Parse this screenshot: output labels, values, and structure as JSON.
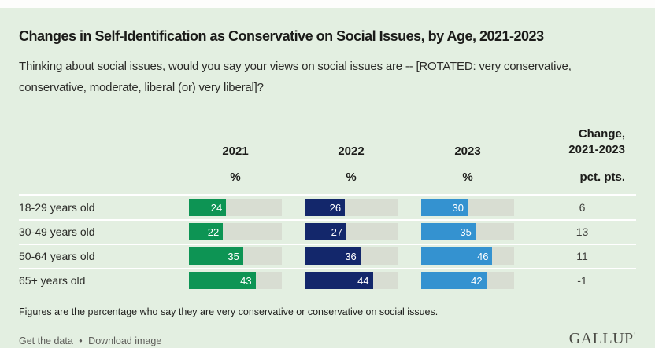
{
  "title": "Changes in Self-Identification as Conservative on Social Issues, by Age, 2021-2023",
  "subtitle": "Thinking about social issues, would you say your views on social issues are -- [ROTATED: very conservative, conservative, moderate, liberal (or) very liberal]?",
  "chart_data": {
    "type": "bar",
    "categories": [
      "18-29 years old",
      "30-49 years old",
      "50-64 years old",
      "65+ years old"
    ],
    "series": [
      {
        "name": "2021",
        "unit": "%",
        "color": "#0d9454",
        "values": [
          24,
          22,
          35,
          43
        ]
      },
      {
        "name": "2022",
        "unit": "%",
        "color": "#13276b",
        "values": [
          26,
          27,
          36,
          44
        ]
      },
      {
        "name": "2023",
        "unit": "%",
        "color": "#3492d0",
        "values": [
          30,
          35,
          46,
          42
        ]
      }
    ],
    "change": {
      "header_line1": "Change,",
      "header_line2": "2021-2023",
      "unit": "pct. pts.",
      "values": [
        6,
        13,
        11,
        -1
      ]
    },
    "xlim": [
      0,
      60
    ],
    "track_color": "#d8ddd2",
    "background_color": "#e3efe1",
    "grid": false,
    "legend_position": "column-headers"
  },
  "footnote": "Figures are the percentage who say they are very conservative or conservative on social issues.",
  "footer": {
    "get_data": "Get the data",
    "separator": "•",
    "download": "Download image",
    "logo": "GALLUP",
    "logo_mark": "’"
  }
}
